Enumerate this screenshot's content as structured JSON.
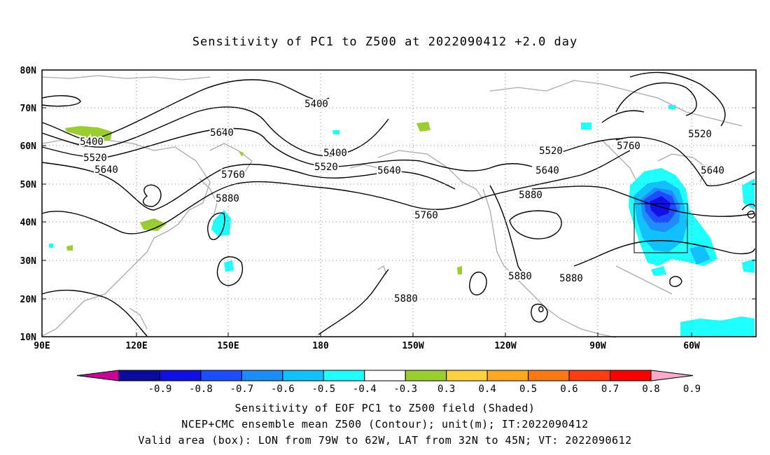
{
  "title": "Sensitivity of PC1 to Z500 at 2022090412 +2.0 day",
  "axes": {
    "lat_ticks": [
      "80N",
      "70N",
      "60N",
      "50N",
      "40N",
      "30N",
      "20N",
      "10N"
    ],
    "lon_ticks": [
      "90E",
      "120E",
      "150E",
      "180",
      "150W",
      "120W",
      "90W",
      "60W"
    ]
  },
  "contour_labels": [
    "5400",
    "5400",
    "5400",
    "5520",
    "5520",
    "5520",
    "5520",
    "5640",
    "5640",
    "5640",
    "5640",
    "5640",
    "5760",
    "5760",
    "5760",
    "5880",
    "5880",
    "5880",
    "5880",
    "5880"
  ],
  "colorbar": {
    "labels": [
      "-0.9",
      "-0.8",
      "-0.7",
      "-0.6",
      "-0.5",
      "-0.4",
      "-0.3",
      "0.3",
      "0.4",
      "0.5",
      "0.6",
      "0.7",
      "0.8",
      "0.9"
    ],
    "colors": [
      "#c80096",
      "#0a0aa0",
      "#1010e6",
      "#1e4cff",
      "#1e8cff",
      "#10c0ff",
      "#20ffff",
      "#ffffff",
      "#9acd32",
      "#ffd23c",
      "#ffaa1e",
      "#ff7814",
      "#ff3c14",
      "#ff0000",
      "#ffaacc"
    ]
  },
  "captions": {
    "line1": "Sensitivity of EOF PC1 to Z500 field (Shaded)",
    "line2": "NCEP+CMC ensemble mean Z500 (Contour); unit(m); IT:2022090412",
    "line3": "Valid area (box): LON from 79W to 62W, LAT from 32N to 45N; VT: 2022090612"
  }
}
